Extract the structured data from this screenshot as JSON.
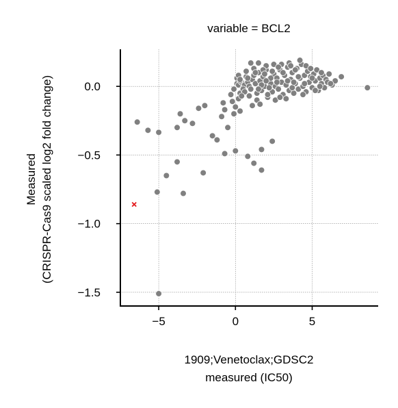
{
  "chart_data": {
    "type": "scatter",
    "title": "variable = BCL2",
    "xlabel": [
      "1909;Venetoclax;GDSC2",
      "measured (IC50)"
    ],
    "ylabel": [
      "Measured",
      "(CRISPR-Cas9 scaled log2 fold change)"
    ],
    "xlim": [
      -7.5,
      9.3
    ],
    "ylim": [
      -1.6,
      0.27
    ],
    "xticks": [
      -5,
      0,
      5
    ],
    "xtick_labels": [
      "−5",
      "0",
      "5"
    ],
    "yticks": [
      0.0,
      -0.5,
      -1.0,
      -1.5
    ],
    "ytick_labels": [
      "0.0",
      "−0.5",
      "−1.0",
      "−1.5"
    ],
    "grid": true,
    "colors": {
      "points": "#808080",
      "highlight": "#e31a1c",
      "axis": "#000000",
      "grid": "#888888"
    },
    "highlight": {
      "x": -6.6,
      "y": -0.86,
      "marker": "x"
    },
    "points": [
      [
        -6.4,
        -0.26
      ],
      [
        -5.7,
        -0.32
      ],
      [
        -5.0,
        -0.335
      ],
      [
        -3.6,
        -0.2
      ],
      [
        -3.8,
        -0.3
      ],
      [
        -3.3,
        -0.25
      ],
      [
        -2.8,
        -0.27
      ],
      [
        -2.4,
        -0.16
      ],
      [
        -2.0,
        -0.14
      ],
      [
        -1.5,
        -0.36
      ],
      [
        -1.2,
        -0.39
      ],
      [
        -0.8,
        -0.12
      ],
      [
        -0.7,
        -0.17
      ],
      [
        -0.9,
        -0.22
      ],
      [
        -0.5,
        -0.3
      ],
      [
        -0.7,
        -0.49
      ],
      [
        -0.3,
        -0.06
      ],
      [
        0.0,
        -0.47
      ],
      [
        -0.1,
        -0.2
      ],
      [
        -0.2,
        -0.11
      ],
      [
        -0.1,
        -0.02
      ],
      [
        0.0,
        -0.15
      ],
      [
        0.2,
        -0.09
      ],
      [
        0.3,
        -0.18
      ],
      [
        -3.8,
        -0.55
      ],
      [
        -4.5,
        -0.65
      ],
      [
        -2.1,
        -0.63
      ],
      [
        -5.1,
        -0.77
      ],
      [
        -3.4,
        -0.78
      ],
      [
        -5.0,
        -1.51
      ],
      [
        0.8,
        -0.51
      ],
      [
        1.2,
        -0.56
      ],
      [
        1.7,
        -0.61
      ],
      [
        1.7,
        -0.46
      ],
      [
        2.4,
        -0.4
      ],
      [
        0.1,
        0.06
      ],
      [
        0.1,
        0.02
      ],
      [
        0.2,
        0.01
      ],
      [
        0.3,
        -0.05
      ],
      [
        0.4,
        0.03
      ],
      [
        0.5,
        -0.01
      ],
      [
        0.2,
        0.08
      ],
      [
        0.3,
        0.04
      ],
      [
        0.6,
        0.01
      ],
      [
        0.5,
        -0.02
      ],
      [
        0.7,
        0.07
      ],
      [
        0.8,
        0.03
      ],
      [
        0.9,
        0.0
      ],
      [
        1.0,
        -0.02
      ],
      [
        1.1,
        0.05
      ],
      [
        1.2,
        0.08
      ],
      [
        1.3,
        0.02
      ],
      [
        1.4,
        -0.05
      ],
      [
        1.5,
        0.1
      ],
      [
        1.6,
        0.04
      ],
      [
        1.7,
        -0.03
      ],
      [
        1.8,
        0.07
      ],
      [
        1.9,
        0.0
      ],
      [
        2.0,
        0.12
      ],
      [
        2.1,
        -0.08
      ],
      [
        2.2,
        0.05
      ],
      [
        2.3,
        0.02
      ],
      [
        2.4,
        -0.04
      ],
      [
        2.5,
        0.09
      ],
      [
        2.6,
        0.0
      ],
      [
        2.7,
        0.06
      ],
      [
        2.8,
        -0.02
      ],
      [
        2.9,
        0.12
      ],
      [
        3.0,
        0.03
      ],
      [
        3.1,
        -0.06
      ],
      [
        3.2,
        0.08
      ],
      [
        3.3,
        0.01
      ],
      [
        3.4,
        0.14
      ],
      [
        3.5,
        -0.03
      ],
      [
        3.6,
        0.05
      ],
      [
        3.7,
        0.1
      ],
      [
        3.8,
        -0.05
      ],
      [
        3.9,
        0.02
      ],
      [
        4.0,
        0.13
      ],
      [
        4.1,
        -0.02
      ],
      [
        4.2,
        0.06
      ],
      [
        4.3,
        0.16
      ],
      [
        4.4,
        0.0
      ],
      [
        4.5,
        0.08
      ],
      [
        4.6,
        -0.04
      ],
      [
        4.7,
        0.11
      ],
      [
        4.8,
        0.03
      ],
      [
        4.9,
        0.07
      ],
      [
        5.0,
        -0.01
      ],
      [
        5.1,
        0.09
      ],
      [
        5.2,
        0.04
      ],
      [
        5.3,
        0.12
      ],
      [
        5.4,
        -0.03
      ],
      [
        5.5,
        0.06
      ],
      [
        5.6,
        0.02
      ],
      [
        5.7,
        0.08
      ],
      [
        5.8,
        -0.01
      ],
      [
        5.9,
        0.05
      ],
      [
        6.0,
        0.03
      ],
      [
        6.1,
        0.09
      ],
      [
        6.3,
        0.01
      ],
      [
        6.5,
        0.04
      ],
      [
        6.9,
        0.07
      ],
      [
        8.6,
        -0.01
      ],
      [
        1.0,
        0.17
      ],
      [
        1.5,
        0.17
      ],
      [
        2.5,
        0.16
      ],
      [
        3.0,
        0.16
      ],
      [
        3.5,
        0.17
      ],
      [
        4.2,
        0.19
      ],
      [
        1.2,
        0.13
      ],
      [
        2.0,
        0.15
      ],
      [
        2.8,
        0.14
      ],
      [
        3.6,
        0.15
      ],
      [
        4.6,
        0.15
      ],
      [
        5.6,
        0.1
      ],
      [
        0.7,
        0.11
      ],
      [
        1.8,
        0.12
      ],
      [
        0.9,
        -0.07
      ],
      [
        1.4,
        -0.1
      ],
      [
        2.1,
        -0.06
      ],
      [
        2.6,
        -0.1
      ],
      [
        1.6,
        -0.13
      ],
      [
        2.9,
        -0.08
      ],
      [
        3.3,
        -0.09
      ],
      [
        0.6,
        -0.04
      ],
      [
        0.4,
        -0.07
      ],
      [
        1.1,
        -0.14
      ],
      [
        0.3,
        0.05
      ],
      [
        1.3,
        0.1
      ],
      [
        2.4,
        0.11
      ],
      [
        3.9,
        0.12
      ],
      [
        4.9,
        0.13
      ],
      [
        5.2,
        -0.03
      ],
      [
        2.2,
        -0.01
      ],
      [
        3.4,
        0.04
      ],
      [
        4.5,
        0.02
      ],
      [
        1.7,
        0.01
      ],
      [
        2.7,
        0.03
      ],
      [
        3.7,
        -0.01
      ],
      [
        4.1,
        0.07
      ],
      [
        1.9,
        0.09
      ],
      [
        0.8,
        0.06
      ],
      [
        1.5,
        -0.02
      ],
      [
        2.3,
        0.06
      ],
      [
        3.1,
        0.1
      ],
      [
        4.4,
        -0.06
      ],
      [
        5.0,
        0.06
      ],
      [
        5.5,
        0.0
      ],
      [
        6.2,
        0.02
      ],
      [
        3.8,
        0.03
      ],
      [
        2.0,
        0.04
      ]
    ]
  }
}
